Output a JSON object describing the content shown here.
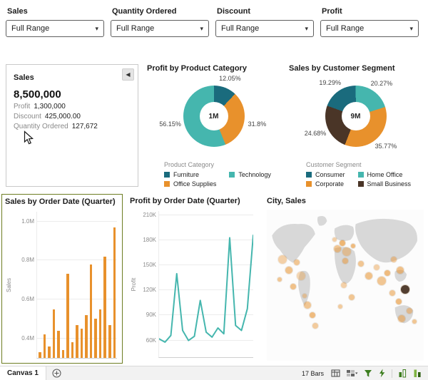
{
  "ui": {
    "chevron": "▾"
  },
  "filters": [
    {
      "label": "Sales",
      "value": "Full Range"
    },
    {
      "label": "Quantity Ordered",
      "value": "Full Range"
    },
    {
      "label": "Discount",
      "value": "Full Range"
    },
    {
      "label": "Profit",
      "value": "Full Range"
    }
  ],
  "kpi": {
    "title": "Sales",
    "value": "8,500,000",
    "collapse_icon": "◀",
    "metrics": [
      {
        "label": "Profit",
        "value": "1,300,000"
      },
      {
        "label": "Discount",
        "value": "425,000.00"
      },
      {
        "label": "Quantity Ordered",
        "value": "127,672"
      }
    ]
  },
  "chart_data": [
    {
      "type": "pie",
      "title": "Profit by Product Category",
      "center_label": "1M",
      "donut": true,
      "start_angle": 0,
      "slices": [
        {
          "label": "Furniture",
          "value": 12.05,
          "pct_label": "12.05%",
          "color": "#1a6b7d"
        },
        {
          "label": "Office Supplies",
          "value": 31.8,
          "pct_label": "31.8%",
          "color": "#e8912c"
        },
        {
          "label": "Technology",
          "value": 56.15,
          "pct_label": "56.15%",
          "color": "#45b6ae"
        }
      ],
      "legend": {
        "title": "Product Category",
        "items": [
          {
            "label": "Furniture",
            "color": "#1a6b7d"
          },
          {
            "label": "Technology",
            "color": "#45b6ae"
          },
          {
            "label": "Office Supplies",
            "color": "#e8912c"
          }
        ]
      }
    },
    {
      "type": "pie",
      "title": "Sales by Customer Segment",
      "center_label": "9M",
      "donut": true,
      "start_angle": 290,
      "slices": [
        {
          "label": "Consumer",
          "value": 19.29,
          "pct_label": "19.29%",
          "color": "#1a6b7d"
        },
        {
          "label": "Home Office",
          "value": 20.27,
          "pct_label": "20.27%",
          "color": "#45b6ae"
        },
        {
          "label": "Corporate",
          "value": 35.77,
          "pct_label": "35.77%",
          "color": "#e8912c"
        },
        {
          "label": "Small Business",
          "value": 24.68,
          "pct_label": "24.68%",
          "color": "#4a3527"
        }
      ],
      "legend": {
        "title": "Customer Segment",
        "items": [
          {
            "label": "Consumer",
            "color": "#1a6b7d"
          },
          {
            "label": "Home Office",
            "color": "#45b6ae"
          },
          {
            "label": "Corporate",
            "color": "#e8912c"
          },
          {
            "label": "Small Business",
            "color": "#4a3527"
          }
        ]
      }
    },
    {
      "type": "bar",
      "title": "Sales by Order Date (Quarter)",
      "ylabel": "Sales",
      "color": "#e8912c",
      "ylim": [
        0.3,
        1.05
      ],
      "yticks": [
        {
          "label": "1.0M",
          "value": 1.0
        },
        {
          "label": "0.8M",
          "value": 0.8
        },
        {
          "label": "0.6M",
          "value": 0.6
        },
        {
          "label": "0.4M",
          "value": 0.4
        }
      ],
      "values": [
        0.33,
        0.42,
        0.36,
        0.55,
        0.44,
        0.34,
        0.73,
        0.38,
        0.47,
        0.45,
        0.52,
        0.78,
        0.5,
        0.55,
        0.82,
        0.47,
        0.97
      ],
      "selected": true
    },
    {
      "type": "line",
      "title": "Profit by Order Date (Quarter)",
      "ylabel": "Profit",
      "color": "#45b6ae",
      "ylim": [
        40,
        215
      ],
      "yticks": [
        {
          "label": "210K",
          "value": 210
        },
        {
          "label": "180K",
          "value": 180
        },
        {
          "label": "150K",
          "value": 150
        },
        {
          "label": "120K",
          "value": 120
        },
        {
          "label": "90K",
          "value": 90
        },
        {
          "label": "60K",
          "value": 60
        }
      ],
      "values": [
        62,
        58,
        66,
        140,
        72,
        60,
        65,
        108,
        70,
        64,
        75,
        68,
        183,
        78,
        72,
        98,
        186
      ]
    },
    {
      "type": "scatter",
      "title": "City, Sales",
      "bubbles": [
        {
          "x": 10,
          "y": 33,
          "r": 6,
          "color": "#e8912c",
          "opacity": 0.4
        },
        {
          "x": 14,
          "y": 40,
          "r": 5,
          "color": "#e8912c",
          "opacity": 0.55
        },
        {
          "x": 19,
          "y": 35,
          "r": 4,
          "color": "#e8912c",
          "opacity": 0.5
        },
        {
          "x": 22,
          "y": 44,
          "r": 6,
          "color": "#e8912c",
          "opacity": 0.35
        },
        {
          "x": 8,
          "y": 46,
          "r": 3,
          "color": "#e8912c",
          "opacity": 0.5
        },
        {
          "x": 17,
          "y": 51,
          "r": 4,
          "color": "#e8912c",
          "opacity": 0.55
        },
        {
          "x": 26,
          "y": 63,
          "r": 5,
          "color": "#e8912c",
          "opacity": 0.5
        },
        {
          "x": 29,
          "y": 70,
          "r": 4,
          "color": "#e8912c",
          "opacity": 0.6
        },
        {
          "x": 24,
          "y": 57,
          "r": 3,
          "color": "#e8912c",
          "opacity": 0.4
        },
        {
          "x": 31,
          "y": 77,
          "r": 4,
          "color": "#e8912c",
          "opacity": 0.45
        },
        {
          "x": 45,
          "y": 26,
          "r": 5,
          "color": "#e8912c",
          "opacity": 0.5
        },
        {
          "x": 48,
          "y": 22,
          "r": 4,
          "color": "#e8912c",
          "opacity": 0.65
        },
        {
          "x": 51,
          "y": 28,
          "r": 6,
          "color": "#e8912c",
          "opacity": 0.4
        },
        {
          "x": 55,
          "y": 24,
          "r": 3,
          "color": "#e8912c",
          "opacity": 0.6
        },
        {
          "x": 50,
          "y": 34,
          "r": 4,
          "color": "#e8912c",
          "opacity": 0.5
        },
        {
          "x": 43,
          "y": 20,
          "r": 3,
          "color": "#e8912c",
          "opacity": 0.4
        },
        {
          "x": 49,
          "y": 50,
          "r": 4,
          "color": "#e8912c",
          "opacity": 0.4
        },
        {
          "x": 54,
          "y": 58,
          "r": 4,
          "color": "#e8912c",
          "opacity": 0.5
        },
        {
          "x": 47,
          "y": 64,
          "r": 3,
          "color": "#e8912c",
          "opacity": 0.45
        },
        {
          "x": 60,
          "y": 36,
          "r": 4,
          "color": "#e8912c",
          "opacity": 0.5
        },
        {
          "x": 65,
          "y": 44,
          "r": 5,
          "color": "#e8912c",
          "opacity": 0.55
        },
        {
          "x": 70,
          "y": 38,
          "r": 4,
          "color": "#e8912c",
          "opacity": 0.4
        },
        {
          "x": 73,
          "y": 47,
          "r": 6,
          "color": "#e8912c",
          "opacity": 0.5
        },
        {
          "x": 77,
          "y": 42,
          "r": 4,
          "color": "#e8912c",
          "opacity": 0.6
        },
        {
          "x": 81,
          "y": 33,
          "r": 4,
          "color": "#e8912c",
          "opacity": 0.45
        },
        {
          "x": 85,
          "y": 40,
          "r": 5,
          "color": "#e8912c",
          "opacity": 0.55
        },
        {
          "x": 80,
          "y": 55,
          "r": 4,
          "color": "#e8912c",
          "opacity": 0.5
        },
        {
          "x": 84,
          "y": 61,
          "r": 4,
          "color": "#e8912c",
          "opacity": 0.6
        },
        {
          "x": 88,
          "y": 53,
          "r": 6,
          "color": "#4a3527",
          "opacity": 0.95
        },
        {
          "x": 86,
          "y": 72,
          "r": 5,
          "color": "#e8912c",
          "opacity": 0.5
        },
        {
          "x": 91,
          "y": 67,
          "r": 4,
          "color": "#e8912c",
          "opacity": 0.45
        },
        {
          "x": 94,
          "y": 74,
          "r": 3,
          "color": "#e8912c",
          "opacity": 0.5
        }
      ]
    }
  ],
  "canvas_bar": {
    "tab": "Canvas 1",
    "status": "17 Bars"
  }
}
